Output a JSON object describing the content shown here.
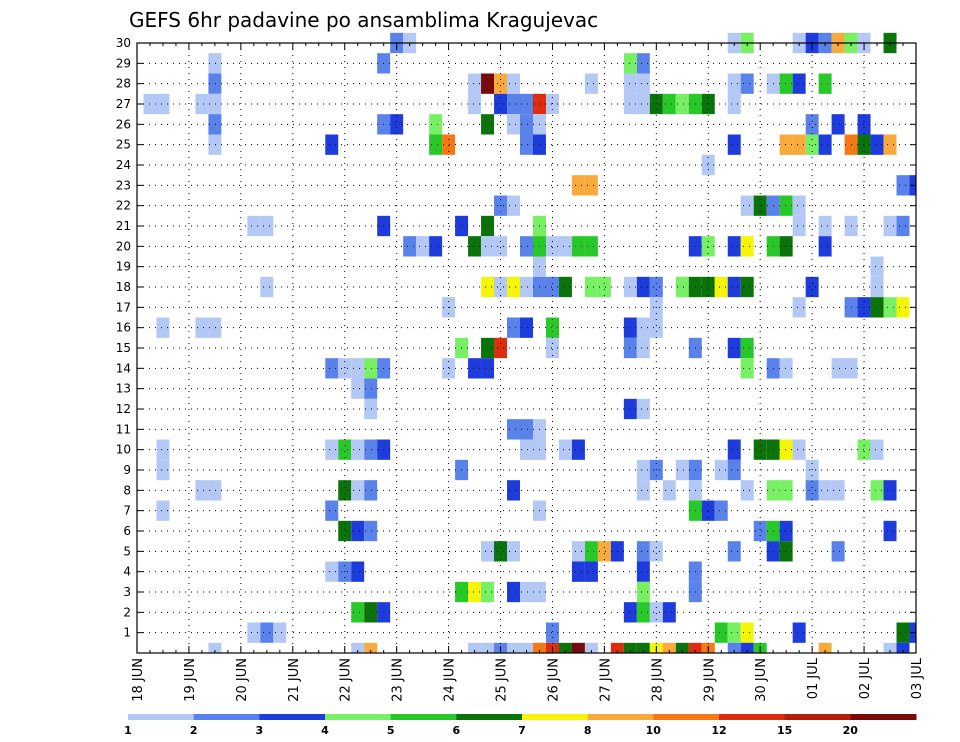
{
  "chart_data": {
    "type": "heatmap",
    "title": "GEFS 6hr padavine po ansamblima Kragujevac",
    "xlabel": "",
    "ylabel": "",
    "x_tick_labels": [
      "18 JUN",
      "19 JUN",
      "20 JUN",
      "21 JUN",
      "22 JUN",
      "23 JUN",
      "24 JUN",
      "25 JUN",
      "26 JUN",
      "27 JUN",
      "28 JUN",
      "29 JUN",
      "30 JUN",
      "01 JUL",
      "02 JUL",
      "03 JUL"
    ],
    "y_tick_labels": [
      "1",
      "2",
      "3",
      "4",
      "5",
      "6",
      "7",
      "8",
      "9",
      "10",
      "11",
      "12",
      "13",
      "14",
      "15",
      "16",
      "17",
      "18",
      "19",
      "20",
      "21",
      "22",
      "23",
      "24",
      "25",
      "26",
      "27",
      "28",
      "29",
      "30"
    ],
    "time_steps_per_day": 4,
    "n_time_steps": 61,
    "members": [
      0,
      30
    ],
    "grid": true,
    "colorbar": {
      "location": "bottom",
      "thresholds": [
        "1",
        "2",
        "3",
        "4",
        "5",
        "6",
        "7",
        "8",
        "10",
        "12",
        "15",
        "20"
      ],
      "colors": [
        "#b4c8f5",
        "#5a82eb",
        "#1e3cdc",
        "#78f064",
        "#28c828",
        "#0a730a",
        "#f5f50a",
        "#faaa3c",
        "#f57814",
        "#dc2d0f",
        "#b41e0a",
        "#780a0a"
      ]
    },
    "cells": [
      [
        30,
        20,
        2
      ],
      [
        30,
        21,
        1
      ],
      [
        30,
        46,
        1
      ],
      [
        30,
        47,
        4
      ],
      [
        30,
        51,
        1
      ],
      [
        30,
        52,
        3
      ],
      [
        30,
        53,
        2
      ],
      [
        30,
        54,
        8
      ],
      [
        30,
        55,
        4
      ],
      [
        30,
        56,
        1
      ],
      [
        30,
        58,
        6
      ],
      [
        29,
        6,
        1
      ],
      [
        29,
        19,
        2
      ],
      [
        29,
        38,
        4
      ],
      [
        29,
        39,
        2
      ],
      [
        28,
        6,
        2
      ],
      [
        28,
        26,
        1
      ],
      [
        28,
        27,
        12
      ],
      [
        28,
        28,
        8
      ],
      [
        28,
        29,
        1
      ],
      [
        28,
        35,
        1
      ],
      [
        28,
        38,
        1
      ],
      [
        28,
        39,
        1
      ],
      [
        28,
        46,
        1
      ],
      [
        28,
        47,
        2
      ],
      [
        28,
        49,
        1
      ],
      [
        28,
        50,
        5
      ],
      [
        28,
        51,
        3
      ],
      [
        28,
        53,
        5
      ],
      [
        27,
        1,
        1
      ],
      [
        27,
        2,
        1
      ],
      [
        27,
        5,
        1
      ],
      [
        27,
        6,
        1
      ],
      [
        27,
        26,
        1
      ],
      [
        27,
        28,
        3
      ],
      [
        27,
        29,
        2
      ],
      [
        27,
        30,
        2
      ],
      [
        27,
        31,
        10
      ],
      [
        27,
        32,
        1
      ],
      [
        27,
        38,
        1
      ],
      [
        27,
        39,
        1
      ],
      [
        27,
        40,
        6
      ],
      [
        27,
        41,
        5
      ],
      [
        27,
        42,
        4
      ],
      [
        27,
        43,
        5
      ],
      [
        27,
        44,
        6
      ],
      [
        27,
        46,
        1
      ],
      [
        26,
        6,
        2
      ],
      [
        26,
        19,
        2
      ],
      [
        26,
        20,
        3
      ],
      [
        26,
        23,
        4
      ],
      [
        26,
        27,
        6
      ],
      [
        26,
        29,
        1
      ],
      [
        26,
        30,
        2
      ],
      [
        26,
        31,
        1
      ],
      [
        26,
        52,
        2
      ],
      [
        26,
        54,
        3
      ],
      [
        26,
        56,
        3
      ],
      [
        25,
        6,
        1
      ],
      [
        25,
        15,
        3
      ],
      [
        25,
        23,
        5
      ],
      [
        25,
        24,
        9
      ],
      [
        25,
        30,
        2
      ],
      [
        25,
        31,
        3
      ],
      [
        25,
        46,
        3
      ],
      [
        25,
        50,
        8
      ],
      [
        25,
        51,
        8
      ],
      [
        25,
        52,
        4
      ],
      [
        25,
        53,
        3
      ],
      [
        25,
        55,
        9
      ],
      [
        25,
        56,
        6
      ],
      [
        25,
        57,
        3
      ],
      [
        25,
        58,
        8
      ],
      [
        24,
        44,
        1
      ],
      [
        23,
        34,
        8
      ],
      [
        23,
        35,
        8
      ],
      [
        23,
        59,
        2
      ],
      [
        23,
        60,
        3
      ],
      [
        22,
        28,
        2
      ],
      [
        22,
        29,
        1
      ],
      [
        22,
        47,
        1
      ],
      [
        22,
        48,
        6
      ],
      [
        22,
        49,
        2
      ],
      [
        22,
        50,
        5
      ],
      [
        22,
        51,
        1
      ],
      [
        21,
        9,
        1
      ],
      [
        21,
        10,
        1
      ],
      [
        21,
        19,
        3
      ],
      [
        21,
        25,
        3
      ],
      [
        21,
        27,
        6
      ],
      [
        21,
        31,
        4
      ],
      [
        21,
        51,
        1
      ],
      [
        21,
        53,
        1
      ],
      [
        21,
        55,
        1
      ],
      [
        21,
        58,
        1
      ],
      [
        21,
        59,
        2
      ],
      [
        20,
        21,
        2
      ],
      [
        20,
        22,
        1
      ],
      [
        20,
        23,
        3
      ],
      [
        20,
        26,
        6
      ],
      [
        20,
        27,
        1
      ],
      [
        20,
        28,
        1
      ],
      [
        20,
        30,
        2
      ],
      [
        20,
        31,
        5
      ],
      [
        20,
        32,
        1
      ],
      [
        20,
        33,
        1
      ],
      [
        20,
        34,
        5
      ],
      [
        20,
        35,
        5
      ],
      [
        20,
        43,
        3
      ],
      [
        20,
        44,
        4
      ],
      [
        20,
        46,
        3
      ],
      [
        20,
        47,
        7
      ],
      [
        20,
        49,
        5
      ],
      [
        20,
        50,
        6
      ],
      [
        20,
        53,
        3
      ],
      [
        19,
        31,
        1
      ],
      [
        19,
        57,
        1
      ],
      [
        18,
        10,
        1
      ],
      [
        18,
        27,
        7
      ],
      [
        18,
        28,
        1
      ],
      [
        18,
        29,
        7
      ],
      [
        18,
        30,
        1
      ],
      [
        18,
        31,
        2
      ],
      [
        18,
        32,
        2
      ],
      [
        18,
        33,
        6
      ],
      [
        18,
        35,
        4
      ],
      [
        18,
        36,
        4
      ],
      [
        18,
        38,
        1
      ],
      [
        18,
        39,
        3
      ],
      [
        18,
        40,
        2
      ],
      [
        18,
        42,
        4
      ],
      [
        18,
        43,
        6
      ],
      [
        18,
        44,
        6
      ],
      [
        18,
        45,
        7
      ],
      [
        18,
        46,
        3
      ],
      [
        18,
        47,
        6
      ],
      [
        18,
        52,
        3
      ],
      [
        18,
        57,
        1
      ],
      [
        17,
        24,
        1
      ],
      [
        17,
        40,
        1
      ],
      [
        17,
        51,
        1
      ],
      [
        17,
        55,
        2
      ],
      [
        17,
        56,
        3
      ],
      [
        17,
        57,
        6
      ],
      [
        17,
        58,
        4
      ],
      [
        17,
        59,
        7
      ],
      [
        16,
        2,
        1
      ],
      [
        16,
        5,
        1
      ],
      [
        16,
        6,
        1
      ],
      [
        16,
        29,
        2
      ],
      [
        16,
        30,
        3
      ],
      [
        16,
        32,
        5
      ],
      [
        16,
        38,
        3
      ],
      [
        16,
        39,
        1
      ],
      [
        16,
        40,
        1
      ],
      [
        15,
        25,
        4
      ],
      [
        15,
        27,
        6
      ],
      [
        15,
        28,
        10
      ],
      [
        15,
        32,
        1
      ],
      [
        15,
        38,
        2
      ],
      [
        15,
        39,
        1
      ],
      [
        15,
        43,
        2
      ],
      [
        15,
        46,
        3
      ],
      [
        15,
        47,
        5
      ],
      [
        14,
        15,
        2
      ],
      [
        14,
        16,
        1
      ],
      [
        14,
        17,
        1
      ],
      [
        14,
        18,
        4
      ],
      [
        14,
        19,
        2
      ],
      [
        14,
        24,
        1
      ],
      [
        14,
        26,
        3
      ],
      [
        14,
        27,
        3
      ],
      [
        14,
        47,
        4
      ],
      [
        14,
        49,
        2
      ],
      [
        14,
        50,
        1
      ],
      [
        14,
        54,
        1
      ],
      [
        14,
        55,
        1
      ],
      [
        13,
        17,
        1
      ],
      [
        13,
        18,
        2
      ],
      [
        12,
        18,
        1
      ],
      [
        12,
        38,
        3
      ],
      [
        12,
        39,
        1
      ],
      [
        11,
        29,
        2
      ],
      [
        11,
        30,
        2
      ],
      [
        11,
        31,
        1
      ],
      [
        10,
        2,
        1
      ],
      [
        10,
        15,
        1
      ],
      [
        10,
        16,
        5
      ],
      [
        10,
        17,
        1
      ],
      [
        10,
        18,
        2
      ],
      [
        10,
        19,
        3
      ],
      [
        10,
        30,
        1
      ],
      [
        10,
        31,
        1
      ],
      [
        10,
        33,
        1
      ],
      [
        10,
        34,
        3
      ],
      [
        10,
        46,
        3
      ],
      [
        10,
        48,
        6
      ],
      [
        10,
        49,
        6
      ],
      [
        10,
        50,
        7
      ],
      [
        10,
        51,
        1
      ],
      [
        10,
        56,
        4
      ],
      [
        10,
        57,
        1
      ],
      [
        9,
        2,
        1
      ],
      [
        9,
        25,
        2
      ],
      [
        9,
        39,
        1
      ],
      [
        9,
        40,
        2
      ],
      [
        9,
        42,
        1
      ],
      [
        9,
        43,
        2
      ],
      [
        9,
        45,
        1
      ],
      [
        9,
        46,
        2
      ],
      [
        9,
        52,
        1
      ],
      [
        8,
        5,
        1
      ],
      [
        8,
        6,
        1
      ],
      [
        8,
        16,
        6
      ],
      [
        8,
        17,
        1
      ],
      [
        8,
        18,
        2
      ],
      [
        8,
        29,
        3
      ],
      [
        8,
        39,
        1
      ],
      [
        8,
        41,
        1
      ],
      [
        8,
        43,
        1
      ],
      [
        8,
        47,
        1
      ],
      [
        8,
        49,
        4
      ],
      [
        8,
        50,
        4
      ],
      [
        8,
        52,
        2
      ],
      [
        8,
        53,
        1
      ],
      [
        8,
        54,
        1
      ],
      [
        8,
        57,
        4
      ],
      [
        8,
        58,
        3
      ],
      [
        7,
        2,
        1
      ],
      [
        7,
        15,
        2
      ],
      [
        7,
        31,
        1
      ],
      [
        7,
        43,
        5
      ],
      [
        7,
        44,
        3
      ],
      [
        7,
        45,
        2
      ],
      [
        6,
        16,
        6
      ],
      [
        6,
        17,
        3
      ],
      [
        6,
        18,
        2
      ],
      [
        6,
        48,
        2
      ],
      [
        6,
        49,
        5
      ],
      [
        6,
        50,
        3
      ],
      [
        6,
        58,
        3
      ],
      [
        5,
        27,
        1
      ],
      [
        5,
        28,
        6
      ],
      [
        5,
        29,
        1
      ],
      [
        5,
        34,
        1
      ],
      [
        5,
        35,
        5
      ],
      [
        5,
        36,
        8
      ],
      [
        5,
        37,
        3
      ],
      [
        5,
        39,
        2
      ],
      [
        5,
        40,
        1
      ],
      [
        5,
        46,
        2
      ],
      [
        5,
        49,
        3
      ],
      [
        5,
        50,
        6
      ],
      [
        5,
        54,
        2
      ],
      [
        4,
        15,
        1
      ],
      [
        4,
        16,
        2
      ],
      [
        4,
        17,
        3
      ],
      [
        4,
        34,
        3
      ],
      [
        4,
        35,
        3
      ],
      [
        4,
        39,
        3
      ],
      [
        4,
        43,
        2
      ],
      [
        3,
        25,
        5
      ],
      [
        3,
        26,
        7
      ],
      [
        3,
        27,
        4
      ],
      [
        3,
        29,
        3
      ],
      [
        3,
        30,
        1
      ],
      [
        3,
        31,
        1
      ],
      [
        3,
        39,
        4
      ],
      [
        3,
        43,
        2
      ],
      [
        2,
        17,
        5
      ],
      [
        2,
        18,
        6
      ],
      [
        2,
        19,
        3
      ],
      [
        2,
        38,
        3
      ],
      [
        2,
        39,
        5
      ],
      [
        2,
        40,
        1
      ],
      [
        2,
        41,
        3
      ],
      [
        1,
        9,
        1
      ],
      [
        1,
        10,
        2
      ],
      [
        1,
        11,
        1
      ],
      [
        1,
        32,
        2
      ],
      [
        1,
        45,
        5
      ],
      [
        1,
        46,
        4
      ],
      [
        1,
        47,
        7
      ],
      [
        1,
        51,
        3
      ],
      [
        1,
        59,
        6
      ],
      [
        1,
        60,
        3
      ],
      [
        0,
        6,
        1
      ],
      [
        0,
        17,
        1
      ],
      [
        0,
        18,
        8
      ],
      [
        0,
        26,
        1
      ],
      [
        0,
        27,
        1
      ],
      [
        0,
        28,
        2
      ],
      [
        0,
        29,
        1
      ],
      [
        0,
        30,
        1
      ],
      [
        0,
        31,
        9
      ],
      [
        0,
        32,
        10
      ],
      [
        0,
        33,
        6
      ],
      [
        0,
        34,
        12
      ],
      [
        0,
        35,
        1
      ],
      [
        0,
        37,
        10
      ],
      [
        0,
        38,
        6
      ],
      [
        0,
        39,
        6
      ],
      [
        0,
        40,
        7
      ],
      [
        0,
        41,
        8
      ],
      [
        0,
        42,
        6
      ],
      [
        0,
        43,
        10
      ],
      [
        0,
        44,
        9
      ],
      [
        0,
        46,
        2
      ],
      [
        0,
        47,
        3
      ],
      [
        0,
        48,
        5
      ],
      [
        0,
        53,
        8
      ],
      [
        0,
        58,
        1
      ],
      [
        0,
        59,
        3
      ]
    ]
  }
}
